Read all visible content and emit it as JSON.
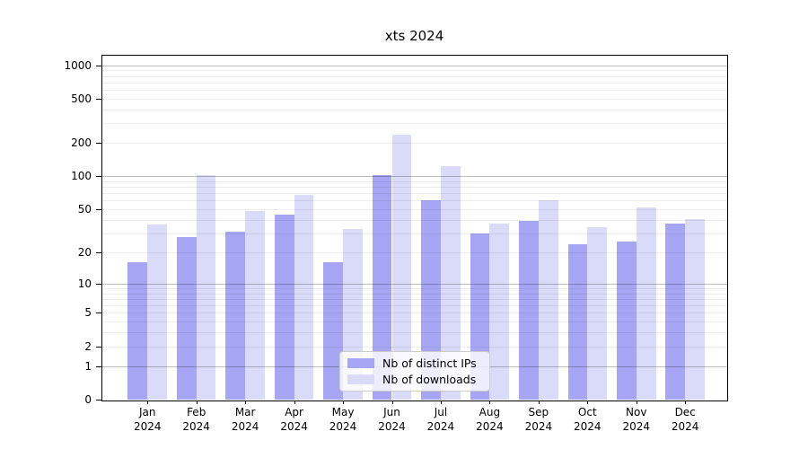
{
  "title": "xts 2024",
  "chart_data": {
    "type": "bar",
    "title": "xts 2024",
    "categories": [
      "Jan 2024",
      "Feb 2024",
      "Mar 2024",
      "Apr 2024",
      "May 2024",
      "Jun 2024",
      "Jul 2024",
      "Aug 2024",
      "Sep 2024",
      "Oct 2024",
      "Nov 2024",
      "Dec 2024"
    ],
    "series": [
      {
        "name": "Nb of distinct IPs",
        "color": "#a6a6f4",
        "values": [
          16,
          28,
          31,
          45,
          16,
          102,
          60,
          30,
          39,
          24,
          25,
          37
        ]
      },
      {
        "name": "Nb of downloads",
        "color": "#dadaf9",
        "values": [
          36,
          103,
          48,
          68,
          33,
          237,
          123,
          37,
          61,
          34,
          52,
          41
        ]
      }
    ],
    "yscale": "log1p",
    "yticks": [
      0,
      1,
      2,
      5,
      10,
      20,
      50,
      100,
      200,
      500,
      1000
    ],
    "yticklabels": [
      "0",
      "1",
      "2",
      "5",
      "10",
      "20",
      "50",
      "100",
      "200",
      "500",
      "1000"
    ],
    "ylim": [
      0,
      1240
    ],
    "xlabel": "",
    "ylabel": "",
    "grid": "horizontal major (1,10,100,1000) + minor (2-9 per decade)",
    "legend_position": "lower center"
  }
}
